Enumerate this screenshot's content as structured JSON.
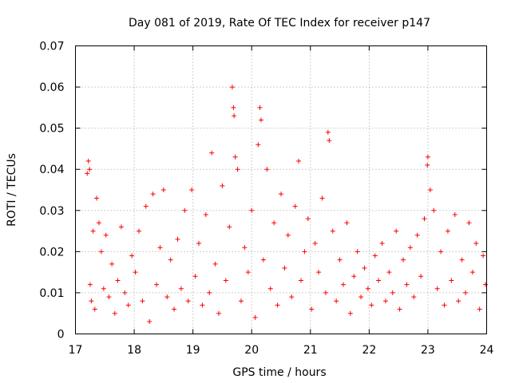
{
  "chart_data": {
    "type": "scatter",
    "title": "Day 081 of 2019, Rate Of TEC Index for receiver p147",
    "xlabel": "GPS time / hours",
    "ylabel": "ROTI / TECUs",
    "xlim": [
      17,
      24
    ],
    "ylim": [
      0,
      0.07
    ],
    "x_ticks": [
      17,
      18,
      19,
      20,
      21,
      22,
      23,
      24
    ],
    "x_tick_labels": [
      "17",
      "18",
      "19",
      "20",
      "21",
      "22",
      "23",
      "24"
    ],
    "y_ticks": [
      0,
      0.01,
      0.02,
      0.03,
      0.04,
      0.05,
      0.06,
      0.07
    ],
    "y_tick_labels": [
      "0",
      "0.01",
      "0.02",
      "0.03",
      "0.04",
      "0.05",
      "0.06",
      "0.07"
    ],
    "grid": true,
    "marker": "+",
    "marker_color": "#ff0000",
    "series": [
      {
        "name": "ROTI",
        "x": [
          17.2,
          17.22,
          17.24,
          17.25,
          17.27,
          17.3,
          17.33,
          17.36,
          17.4,
          17.44,
          17.48,
          17.52,
          17.57,
          17.62,
          17.67,
          17.72,
          17.78,
          17.84,
          17.9,
          17.96,
          18.02,
          18.08,
          18.14,
          18.2,
          18.26,
          18.32,
          18.38,
          18.44,
          18.5,
          18.56,
          18.62,
          18.68,
          18.74,
          18.8,
          18.86,
          18.92,
          18.98,
          19.04,
          19.1,
          19.16,
          19.22,
          19.28,
          19.32,
          19.38,
          19.44,
          19.5,
          19.56,
          19.62,
          19.67,
          19.69,
          19.7,
          19.72,
          19.76,
          19.82,
          19.88,
          19.94,
          20.0,
          20.06,
          20.11,
          20.14,
          20.16,
          20.2,
          20.26,
          20.32,
          20.38,
          20.44,
          20.5,
          20.56,
          20.62,
          20.68,
          20.74,
          20.8,
          20.84,
          20.9,
          20.96,
          21.02,
          21.08,
          21.14,
          21.2,
          21.26,
          21.3,
          21.32,
          21.38,
          21.44,
          21.5,
          21.56,
          21.62,
          21.68,
          21.74,
          21.8,
          21.86,
          21.92,
          21.98,
          22.04,
          22.1,
          22.16,
          22.22,
          22.28,
          22.34,
          22.4,
          22.46,
          22.52,
          22.58,
          22.64,
          22.7,
          22.76,
          22.82,
          22.88,
          22.94,
          22.99,
          23.0,
          23.04,
          23.1,
          23.16,
          23.22,
          23.28,
          23.34,
          23.4,
          23.46,
          23.52,
          23.58,
          23.64,
          23.7,
          23.76,
          23.82,
          23.88,
          23.94,
          23.98
        ],
        "y": [
          0.039,
          0.042,
          0.04,
          0.012,
          0.008,
          0.025,
          0.006,
          0.033,
          0.027,
          0.02,
          0.011,
          0.024,
          0.009,
          0.017,
          0.005,
          0.013,
          0.026,
          0.01,
          0.007,
          0.019,
          0.015,
          0.025,
          0.008,
          0.031,
          0.003,
          0.034,
          0.012,
          0.021,
          0.035,
          0.009,
          0.018,
          0.006,
          0.023,
          0.011,
          0.03,
          0.008,
          0.035,
          0.014,
          0.022,
          0.007,
          0.029,
          0.01,
          0.044,
          0.017,
          0.005,
          0.036,
          0.013,
          0.026,
          0.06,
          0.055,
          0.053,
          0.043,
          0.04,
          0.008,
          0.021,
          0.015,
          0.03,
          0.004,
          0.046,
          0.055,
          0.052,
          0.018,
          0.04,
          0.011,
          0.027,
          0.007,
          0.034,
          0.016,
          0.024,
          0.009,
          0.031,
          0.042,
          0.013,
          0.02,
          0.028,
          0.006,
          0.022,
          0.015,
          0.033,
          0.01,
          0.049,
          0.047,
          0.025,
          0.008,
          0.018,
          0.012,
          0.027,
          0.005,
          0.014,
          0.02,
          0.009,
          0.016,
          0.011,
          0.007,
          0.019,
          0.013,
          0.022,
          0.008,
          0.015,
          0.01,
          0.025,
          0.006,
          0.018,
          0.012,
          0.021,
          0.009,
          0.024,
          0.014,
          0.028,
          0.041,
          0.043,
          0.035,
          0.03,
          0.011,
          0.02,
          0.007,
          0.025,
          0.013,
          0.029,
          0.008,
          0.018,
          0.01,
          0.027,
          0.015,
          0.022,
          0.006,
          0.019,
          0.012
        ]
      }
    ]
  }
}
